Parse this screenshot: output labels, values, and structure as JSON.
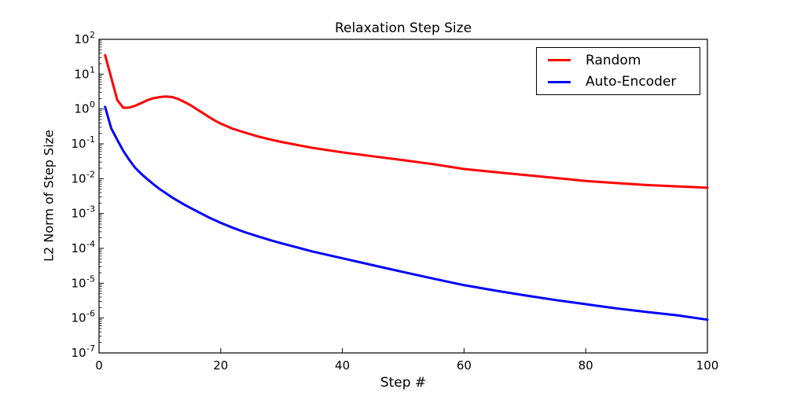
{
  "chart_data": {
    "type": "line",
    "title": "Relaxation Step Size",
    "xlabel": "Step #",
    "ylabel": "L2 Norm of Step Size",
    "x_ticks": [
      0,
      20,
      40,
      60,
      80,
      100
    ],
    "xlim": [
      0,
      100
    ],
    "y_scale": "log",
    "y_tick_exponents": [
      2,
      1,
      0,
      -1,
      -2,
      -3,
      -4,
      -5,
      -6,
      -7
    ],
    "ylim_exponents": [
      -7,
      2
    ],
    "grid": false,
    "axis_color": "#000000",
    "background_color": "#ffffff",
    "legend": {
      "position": "upper right",
      "entries": [
        "Random",
        "Auto-Encoder"
      ]
    },
    "series": [
      {
        "name": "Random",
        "color": "#ff0000",
        "x": [
          1,
          2,
          3,
          4,
          5,
          6,
          7,
          8,
          9,
          10,
          11,
          12,
          13,
          14,
          15,
          16,
          17,
          18,
          19,
          20,
          22,
          24,
          26,
          28,
          30,
          35,
          40,
          45,
          50,
          55,
          60,
          65,
          70,
          75,
          80,
          85,
          90,
          95,
          100
        ],
        "y": [
          35,
          8,
          1.8,
          1.08,
          1.1,
          1.25,
          1.5,
          1.8,
          2.05,
          2.2,
          2.28,
          2.2,
          1.95,
          1.6,
          1.3,
          1.0,
          0.78,
          0.6,
          0.47,
          0.38,
          0.27,
          0.21,
          0.165,
          0.135,
          0.113,
          0.077,
          0.057,
          0.044,
          0.034,
          0.026,
          0.019,
          0.0155,
          0.0128,
          0.0105,
          0.0086,
          0.0075,
          0.0066,
          0.006,
          0.0055
        ]
      },
      {
        "name": "Auto-Encoder",
        "color": "#0000ff",
        "x": [
          1,
          2,
          3,
          4,
          5,
          6,
          7,
          8,
          9,
          10,
          12,
          14,
          16,
          18,
          20,
          22,
          24,
          26,
          28,
          30,
          35,
          40,
          45,
          50,
          55,
          60,
          65,
          70,
          75,
          80,
          85,
          90,
          95,
          100
        ],
        "y": [
          1.15,
          0.28,
          0.13,
          0.062,
          0.034,
          0.02,
          0.0135,
          0.0095,
          0.0068,
          0.005,
          0.0029,
          0.0018,
          0.00118,
          0.00078,
          0.00054,
          0.00039,
          0.00029,
          0.000225,
          0.000175,
          0.00014,
          8.2e-05,
          5.2e-05,
          3.3e-05,
          2.1e-05,
          1.35e-05,
          8.8e-06,
          6.2e-06,
          4.5e-06,
          3.3e-06,
          2.5e-06,
          1.9e-06,
          1.5e-06,
          1.2e-06,
          9e-07
        ]
      }
    ]
  }
}
